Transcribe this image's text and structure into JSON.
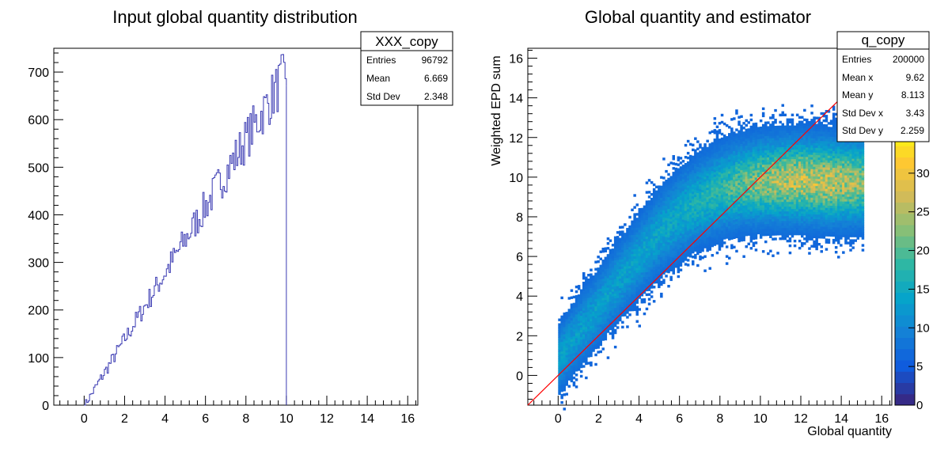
{
  "chart_data": [
    {
      "type": "line",
      "title": "Input global quantity distribution",
      "xlabel": "",
      "ylabel": "",
      "xlim": [
        -1.5,
        16.5
      ],
      "ylim": [
        0,
        750
      ],
      "xticks": [
        "0",
        "2",
        "4",
        "6",
        "8",
        "10",
        "12",
        "14",
        "16"
      ],
      "yticks": [
        "0",
        "100",
        "200",
        "300",
        "400",
        "500",
        "600",
        "700"
      ],
      "line_color": "#3b3bb3",
      "series": [
        {
          "x": [
            0,
            0.5,
            1,
            1.5,
            2,
            2.5,
            3,
            3.5,
            4,
            4.5,
            5,
            5.5,
            6,
            6.5,
            7,
            7.5,
            8,
            8.5,
            9,
            9.5,
            10
          ],
          "values": [
            0,
            35,
            70,
            105,
            140,
            175,
            210,
            245,
            280,
            315,
            350,
            385,
            420,
            455,
            490,
            525,
            560,
            595,
            630,
            665,
            700
          ]
        }
      ],
      "stats_box": {
        "name": "XXX_copy",
        "rows": [
          {
            "label": "Entries",
            "value": "96792"
          },
          {
            "label": "Mean",
            "value": "6.669"
          },
          {
            "label": "Std Dev",
            "value": "2.348"
          }
        ]
      }
    },
    {
      "type": "heatmap",
      "title": "Global quantity and estimator",
      "xlabel": "Global quantity",
      "ylabel": "Weighted EPD sum",
      "xlim": [
        -1.5,
        16.5
      ],
      "ylim": [
        -1.5,
        16.5
      ],
      "xticks": [
        "0",
        "2",
        "4",
        "6",
        "8",
        "10",
        "12",
        "14",
        "16"
      ],
      "yticks": [
        "0",
        "2",
        "4",
        "6",
        "8",
        "10",
        "12",
        "14",
        "16"
      ],
      "zticks": [
        "0",
        "5",
        "10",
        "15",
        "20",
        "25",
        "30"
      ],
      "zlim": [
        0,
        35
      ],
      "band": {
        "x_range": [
          0,
          15
        ],
        "center_y": [
          0.8,
          2.2,
          3.5,
          4.8,
          6.0,
          7.2,
          8.1,
          8.8,
          9.3,
          9.6,
          9.75,
          9.8,
          9.8,
          9.75,
          9.7,
          9.7
        ],
        "peak_x": 12.5,
        "peak_y": 9.7
      },
      "reference_line": {
        "from": [
          -1.5,
          -1.5
        ],
        "to": [
          16.5,
          16.5
        ],
        "color": "#ff0000"
      },
      "stats_box": {
        "name": "q_copy",
        "rows": [
          {
            "label": "Entries",
            "value": "200000"
          },
          {
            "label": "Mean x",
            "value": "9.62"
          },
          {
            "label": "Mean y",
            "value": "8.113"
          },
          {
            "label": "Std Dev x",
            "value": "3.43"
          },
          {
            "label": "Std Dev y",
            "value": "2.259"
          }
        ]
      },
      "palette": [
        "#352a87",
        "#0f5cdd",
        "#1481d6",
        "#06a4ca",
        "#2eb7a4",
        "#87bf77",
        "#d1bb59",
        "#fec832",
        "#f9fb0e"
      ]
    }
  ]
}
